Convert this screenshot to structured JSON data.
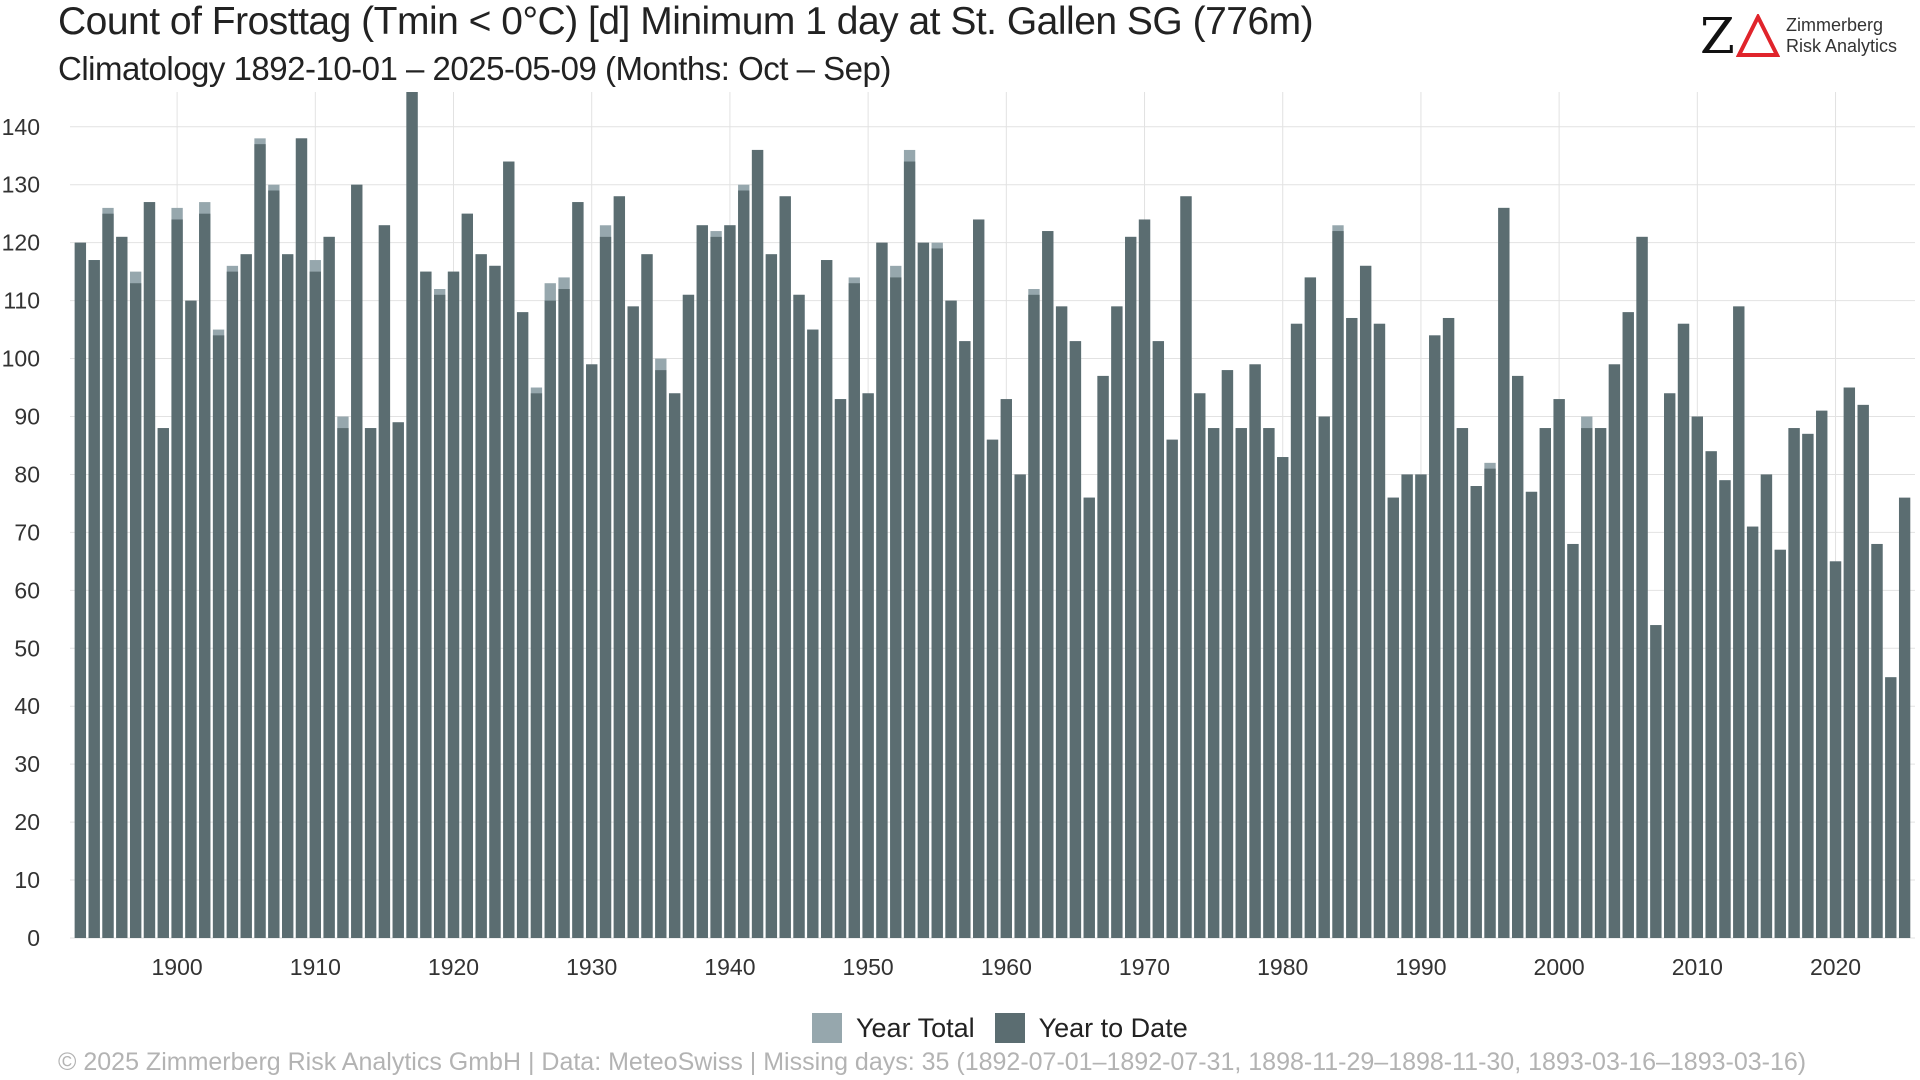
{
  "header": {
    "title": "Count of Frosttag (Tmin < 0°C) [d] Minimum 1 day at St. Gallen  SG (776m)",
    "subtitle": "Climatology 1892-10-01 – 2025-05-09 (Months: Oct – Sep)"
  },
  "logo": {
    "mark": "Z",
    "line1": "Zimmerberg",
    "line2": "Risk Analytics",
    "colors": {
      "mark": "#111111",
      "delta": "#e0242b"
    }
  },
  "footer": {
    "text": "©  2025 Zimmerberg Risk Analytics GmbH | Data: MeteoSwiss | Missing days: 35 (1892-07-01–1892-07-31, 1898-11-29–1898-11-30, 1893-03-16–1893-03-16)"
  },
  "chart_data": {
    "type": "bar",
    "stacked": "overlay",
    "xlabel": "",
    "ylabel": "",
    "ylim": [
      0,
      146
    ],
    "yticks": [
      0,
      10,
      20,
      30,
      40,
      50,
      60,
      70,
      80,
      90,
      100,
      110,
      120,
      130,
      140
    ],
    "xticks": [
      1900,
      1910,
      1920,
      1930,
      1940,
      1950,
      1960,
      1970,
      1980,
      1990,
      2000,
      2010,
      2020
    ],
    "grid": true,
    "legend_position": "bottom",
    "colors": {
      "year_total": "#96a7ad",
      "year_to_date": "#5b6d71",
      "grid": "#e2e2e2"
    },
    "x": [
      1893,
      1894,
      1895,
      1896,
      1897,
      1898,
      1899,
      1900,
      1901,
      1902,
      1903,
      1904,
      1905,
      1906,
      1907,
      1908,
      1909,
      1910,
      1911,
      1912,
      1913,
      1914,
      1915,
      1916,
      1917,
      1918,
      1919,
      1920,
      1921,
      1922,
      1923,
      1924,
      1925,
      1926,
      1927,
      1928,
      1929,
      1930,
      1931,
      1932,
      1933,
      1934,
      1935,
      1936,
      1937,
      1938,
      1939,
      1940,
      1941,
      1942,
      1943,
      1944,
      1945,
      1946,
      1947,
      1948,
      1949,
      1950,
      1951,
      1952,
      1953,
      1954,
      1955,
      1956,
      1957,
      1958,
      1959,
      1960,
      1961,
      1962,
      1963,
      1964,
      1965,
      1966,
      1967,
      1968,
      1969,
      1970,
      1971,
      1972,
      1973,
      1974,
      1975,
      1976,
      1977,
      1978,
      1979,
      1980,
      1981,
      1982,
      1983,
      1984,
      1985,
      1986,
      1987,
      1988,
      1989,
      1990,
      1991,
      1992,
      1993,
      1994,
      1995,
      1996,
      1997,
      1998,
      1999,
      2000,
      2001,
      2002,
      2003,
      2004,
      2005,
      2006,
      2007,
      2008,
      2009,
      2010,
      2011,
      2012,
      2013,
      2014,
      2015,
      2016,
      2017,
      2018,
      2019,
      2020,
      2021,
      2022,
      2023,
      2024,
      2025
    ],
    "series": [
      {
        "name": "Year Total",
        "values": [
          120,
          117,
          126,
          121,
          115,
          127,
          88,
          126,
          110,
          127,
          105,
          116,
          118,
          138,
          130,
          118,
          138,
          117,
          121,
          90,
          130,
          88,
          123,
          89,
          146,
          115,
          112,
          115,
          125,
          118,
          116,
          134,
          108,
          95,
          113,
          114,
          127,
          99,
          123,
          128,
          109,
          118,
          100,
          94,
          111,
          123,
          122,
          123,
          130,
          136,
          118,
          128,
          111,
          105,
          117,
          93,
          114,
          94,
          120,
          116,
          136,
          120,
          120,
          110,
          103,
          124,
          86,
          93,
          80,
          112,
          122,
          109,
          103,
          76,
          97,
          109,
          121,
          124,
          103,
          86,
          128,
          94,
          88,
          98,
          88,
          99,
          88,
          83,
          106,
          114,
          90,
          123,
          107,
          116,
          106,
          76,
          80,
          80,
          104,
          107,
          88,
          78,
          82,
          126,
          97,
          77,
          88,
          93,
          68,
          90,
          88,
          99,
          108,
          121,
          54,
          94,
          106,
          90,
          84,
          79,
          109,
          71,
          80,
          67,
          88,
          87,
          91,
          65,
          95,
          92,
          68,
          45,
          null
        ]
      },
      {
        "name": "Year to Date",
        "values": [
          120,
          117,
          125,
          121,
          113,
          127,
          88,
          124,
          110,
          125,
          104,
          115,
          118,
          137,
          129,
          118,
          138,
          115,
          121,
          88,
          130,
          88,
          123,
          89,
          146,
          115,
          111,
          115,
          125,
          118,
          116,
          134,
          108,
          94,
          110,
          112,
          127,
          99,
          121,
          128,
          109,
          118,
          98,
          94,
          111,
          123,
          121,
          123,
          129,
          136,
          118,
          128,
          111,
          105,
          117,
          93,
          113,
          94,
          120,
          114,
          134,
          120,
          119,
          110,
          103,
          124,
          86,
          93,
          80,
          111,
          122,
          109,
          103,
          76,
          97,
          109,
          121,
          124,
          103,
          86,
          128,
          94,
          88,
          98,
          88,
          99,
          88,
          83,
          106,
          114,
          90,
          122,
          107,
          116,
          106,
          76,
          80,
          80,
          104,
          107,
          88,
          78,
          81,
          126,
          97,
          77,
          88,
          93,
          68,
          88,
          88,
          99,
          108,
          121,
          54,
          94,
          106,
          90,
          84,
          79,
          109,
          71,
          80,
          67,
          88,
          87,
          91,
          65,
          95,
          92,
          68,
          45,
          76
        ]
      }
    ]
  }
}
